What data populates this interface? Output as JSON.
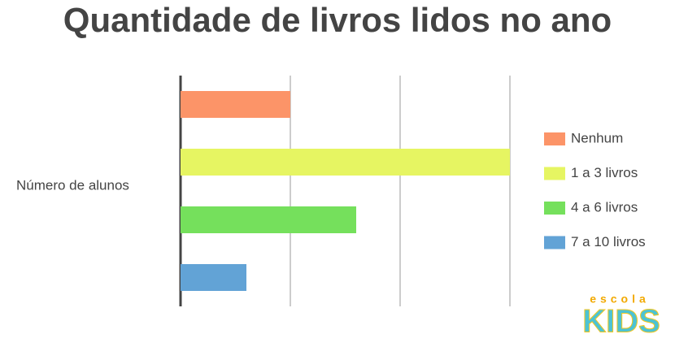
{
  "chart_data": {
    "type": "bar",
    "orientation": "horizontal",
    "title": "Quantidade de livros lidos no ano",
    "ylabel": "Número de alunos",
    "categories": [
      "Nenhum",
      "1 a 3 livros",
      "4 a 6 livros",
      "7 a 10 livros"
    ],
    "values": [
      1,
      3,
      1.6,
      0.6
    ],
    "colors": [
      "#fc9468",
      "#e6f562",
      "#75e05c",
      "#62a3d6"
    ],
    "xlim": [
      0,
      3
    ],
    "xticks": [
      0,
      1,
      2,
      3
    ],
    "grid": true,
    "legend": "right"
  },
  "logo": {
    "top": "escola",
    "bottom": "KIDS"
  }
}
